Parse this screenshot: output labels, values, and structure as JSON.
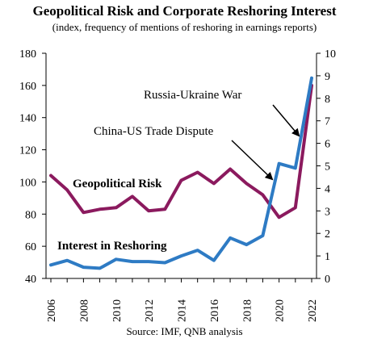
{
  "chart_data": {
    "type": "line",
    "title": "Geopolitical Risk and Corporate Reshoring Interest",
    "subtitle": "(index, frequency of mentions of reshoring in earnings reports)",
    "source": "Source: IMF, QNB analysis",
    "x": [
      2006,
      2007,
      2008,
      2009,
      2010,
      2011,
      2012,
      2013,
      2014,
      2015,
      2016,
      2017,
      2018,
      2019,
      2020,
      2021,
      2022
    ],
    "x_ticks": [
      "2006",
      "2008",
      "2010",
      "2012",
      "2014",
      "2016",
      "2018",
      "2020",
      "2022"
    ],
    "y_left": {
      "lim": [
        40,
        180
      ],
      "ticks": [
        "40",
        "60",
        "80",
        "100",
        "120",
        "140",
        "160",
        "180"
      ]
    },
    "y_right": {
      "lim": [
        0,
        10
      ],
      "ticks": [
        "0",
        "1",
        "2",
        "3",
        "4",
        "5",
        "6",
        "7",
        "8",
        "9",
        "10"
      ]
    },
    "series": [
      {
        "name": "Geopolitical Risk",
        "axis": "left",
        "color": "#8B1A5E",
        "values": [
          104,
          95,
          81,
          83,
          84,
          91,
          82,
          83,
          101,
          106,
          99,
          108,
          99,
          92,
          78,
          84,
          160
        ]
      },
      {
        "name": "Interest in Reshoring",
        "axis": "right",
        "color": "#2E7BC4",
        "values": [
          0.6,
          0.8,
          0.5,
          0.45,
          0.85,
          0.75,
          0.75,
          0.7,
          1.0,
          1.25,
          0.8,
          1.8,
          1.5,
          1.9,
          5.1,
          4.9,
          8.9
        ]
      }
    ],
    "annotations": [
      {
        "text": "Russia-Ukraine War"
      },
      {
        "text": "China-US Trade Dispute"
      }
    ],
    "grid": false
  }
}
